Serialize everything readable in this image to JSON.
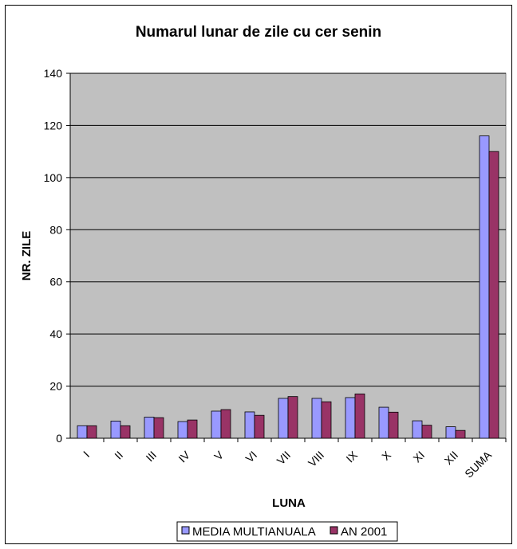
{
  "chart_data": {
    "type": "bar",
    "title": "Numarul lunar de zile cu cer senin",
    "xlabel": "LUNA",
    "ylabel": "NR. ZILE",
    "ylim": [
      0,
      140
    ],
    "yticks": [
      0,
      20,
      40,
      60,
      80,
      100,
      120,
      140
    ],
    "grid": true,
    "legend_position": "bottom",
    "categories": [
      "I",
      "II",
      "III",
      "IV",
      "V",
      "VI",
      "VII",
      "VIII",
      "IX",
      "X",
      "XI",
      "XII",
      "SUMA"
    ],
    "series": [
      {
        "name": "MEDIA MULTIANUALA",
        "color": "#9999ff",
        "values": [
          4.8,
          6.6,
          8.1,
          6.4,
          10.4,
          10.1,
          15.3,
          15.3,
          15.6,
          11.9,
          6.7,
          4.4,
          116
        ]
      },
      {
        "name": "AN 2001",
        "color": "#993366",
        "values": [
          4.8,
          4.8,
          7.9,
          7.0,
          11.0,
          8.8,
          16.0,
          14.0,
          17.0,
          10.0,
          5.0,
          3.0,
          110
        ]
      }
    ],
    "plot_background": "#c0c0c0"
  }
}
